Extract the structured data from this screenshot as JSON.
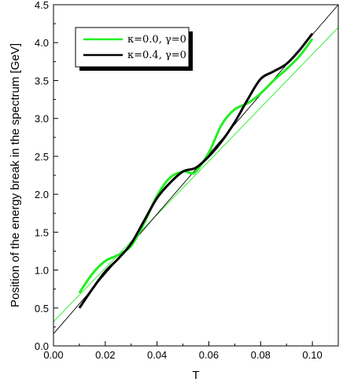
{
  "chart_data": {
    "type": "line",
    "title": "",
    "xlabel": "T",
    "ylabel": "Position of the energy break in the spectrum [GeV]",
    "xlim": [
      0.0,
      0.11
    ],
    "ylim": [
      0.0,
      4.5
    ],
    "grid": false,
    "legend_position": "top-left",
    "x_ticks": [
      "0.00",
      "0.02",
      "0.04",
      "0.06",
      "0.08",
      "0.10"
    ],
    "y_ticks": [
      "0.0",
      "0.5",
      "1.0",
      "1.5",
      "2.0",
      "2.5",
      "3.0",
      "3.5",
      "4.0",
      "4.5"
    ],
    "legend": [
      {
        "label": "κ=0.0, γ=0",
        "color": "#22ee22"
      },
      {
        "label": "κ=0.4, γ=0",
        "color": "#000000"
      }
    ],
    "series": [
      {
        "name": "κ=0.0, γ=0",
        "color": "#22ee22",
        "x": [
          0.01,
          0.015,
          0.02,
          0.025,
          0.03,
          0.035,
          0.04,
          0.045,
          0.05,
          0.053,
          0.055,
          0.06,
          0.065,
          0.07,
          0.075,
          0.08,
          0.085,
          0.09,
          0.095,
          0.1
        ],
        "y": [
          0.7,
          0.95,
          1.12,
          1.2,
          1.32,
          1.62,
          1.98,
          2.22,
          2.3,
          2.28,
          2.3,
          2.55,
          2.92,
          3.12,
          3.2,
          3.33,
          3.5,
          3.65,
          3.82,
          4.05
        ]
      },
      {
        "name": "κ=0.4, γ=0",
        "color": "#000000",
        "x": [
          0.01,
          0.015,
          0.02,
          0.025,
          0.03,
          0.035,
          0.04,
          0.045,
          0.05,
          0.055,
          0.06,
          0.065,
          0.07,
          0.075,
          0.08,
          0.085,
          0.09,
          0.095,
          0.1
        ],
        "y": [
          0.5,
          0.75,
          0.98,
          1.15,
          1.35,
          1.65,
          1.95,
          2.15,
          2.3,
          2.35,
          2.5,
          2.7,
          2.95,
          3.25,
          3.52,
          3.62,
          3.72,
          3.9,
          4.12
        ]
      },
      {
        "name": "",
        "color": "#22ee22",
        "x": [
          0.0,
          0.11
        ],
        "y": [
          0.32,
          4.2
        ]
      },
      {
        "name": "",
        "color": "#000000",
        "x": [
          0.0,
          0.11
        ],
        "y": [
          0.16,
          4.5
        ]
      }
    ]
  }
}
